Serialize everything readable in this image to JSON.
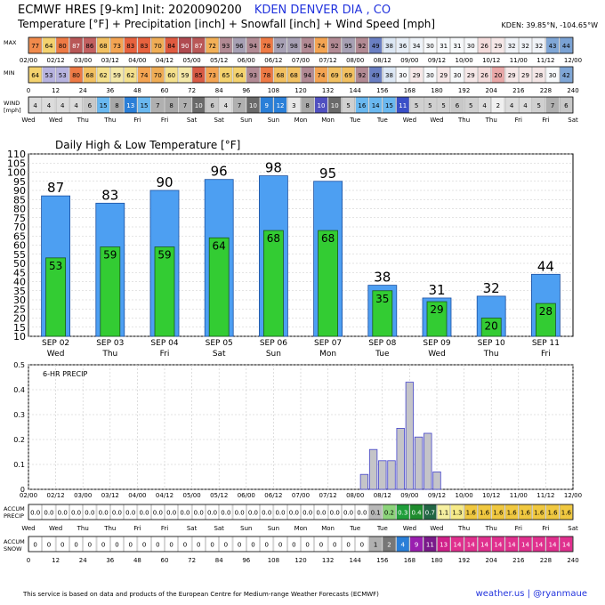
{
  "header": {
    "line1": "ECMWF HRES [9-km] Init: 2020090200",
    "place": "KDEN DENVER DIA   , CO",
    "line2": "Temperature [°F] + Precipitation [inch] + Snowfall [inch] + Wind Speed [mph]",
    "coords": "KDEN: 39.85°N, -104.65°W"
  },
  "footer": {
    "left": "This service is based on data and products of the European Centre for Medium-range Weather Forecasts (ECMWF)",
    "right": "weather.us | @ryanmaue"
  },
  "colors": {
    "high_bar": "#4d9ff2",
    "low_bar": "#33cc33",
    "precip_bar": "#c4c4c8",
    "precip_edge": "#4444cc"
  },
  "strip": {
    "max_label": "MAX",
    "min_label": "MIN",
    "wind_label_1": "WIND",
    "wind_label_2": "[mph]",
    "accum_precip_label_1": "ACCUM",
    "accum_precip_label_2": "PRECIP",
    "accum_snow_label_1": "ACCUM",
    "accum_snow_label_2": "SNOW",
    "max_values": [
      "77",
      "64",
      "80",
      "87",
      "86",
      "68",
      "73",
      "83",
      "83",
      "70",
      "84",
      "90",
      "87",
      "72",
      "93",
      "96",
      "94",
      "78",
      "97",
      "98",
      "94",
      "74",
      "92",
      "95",
      "92",
      "49",
      "38",
      "36",
      "34",
      "30",
      "31",
      "31",
      "30",
      "26",
      "29",
      "32",
      "32",
      "32",
      "43",
      "44"
    ],
    "max_colors": [
      "#f08a4b",
      "#f4d26e",
      "#ee7a45",
      "#b95757",
      "#c36060",
      "#f2c061",
      "#f4a452",
      "#e8623e",
      "#e8623e",
      "#f0ad55",
      "#e05a40",
      "#b04a50",
      "#b95757",
      "#f2b057",
      "#b28a94",
      "#a7a0b4",
      "#b28a94",
      "#ee7a45",
      "#a7a0b4",
      "#a7a0b4",
      "#b28a94",
      "#f4a452",
      "#b28a94",
      "#a7a0b4",
      "#b28a94",
      "#6a7fc2",
      "#dce7f4",
      "#e7eef7",
      "#eef3f9",
      "#f7f9fb",
      "#f7f9fb",
      "#f7f9fb",
      "#f7f9fb",
      "#f4dcdc",
      "#f6e8e8",
      "#f0f3f8",
      "#f0f3f8",
      "#f0f3f8",
      "#7fa6d6",
      "#7aa2d4"
    ],
    "min_values": [
      "64",
      "53",
      "53",
      "80",
      "68",
      "62",
      "59",
      "62",
      "74",
      "70",
      "60",
      "59",
      "85",
      "73",
      "65",
      "64",
      "93",
      "78",
      "68",
      "68",
      "94",
      "74",
      "69",
      "69",
      "92",
      "49",
      "38",
      "30",
      "29",
      "30",
      "29",
      "30",
      "29",
      "26",
      "20",
      "29",
      "29",
      "28",
      "30",
      "42"
    ],
    "min_colors": [
      "#f4d26e",
      "#b7b3df",
      "#b7b3df",
      "#ee7a45",
      "#f2c061",
      "#f4e08c",
      "#f4e8a8",
      "#f4e08c",
      "#f4a452",
      "#f0ad55",
      "#f4e08c",
      "#f4e8a8",
      "#d85b45",
      "#f4a452",
      "#f4d26e",
      "#f4d26e",
      "#b28a94",
      "#ee7a45",
      "#f2c061",
      "#f2c061",
      "#b28a94",
      "#f4a452",
      "#f2c061",
      "#f2c061",
      "#b28a94",
      "#6a7fc2",
      "#dce7f4",
      "#f7f9fb",
      "#f6e8e8",
      "#f7f9fb",
      "#f6e8e8",
      "#f7f9fb",
      "#f6e8e8",
      "#f4dcdc",
      "#e9a8a8",
      "#f6e8e8",
      "#f6e8e8",
      "#f4e6e6",
      "#f7f9fb",
      "#7fa6d6"
    ],
    "wind_values": [
      "4",
      "4",
      "4",
      "4",
      "6",
      "15",
      "8",
      "13",
      "15",
      "7",
      "8",
      "7",
      "10",
      "6",
      "4",
      "7",
      "10",
      "9",
      "12",
      "3",
      "8",
      "10",
      "10",
      "5",
      "16",
      "14",
      "15",
      "11",
      "5",
      "5",
      "5",
      "6",
      "5",
      "4",
      "2",
      "4",
      "4",
      "5",
      "7",
      "6"
    ],
    "wind_colors": [
      "#dcdcdc",
      "#dcdcdc",
      "#dcdcdc",
      "#dcdcdc",
      "#c8c8c8",
      "#6ab8f0",
      "#a8a8a8",
      "#2a7fd8",
      "#6ab8f0",
      "#b0b0b0",
      "#a8a8a8",
      "#b0b0b0",
      "#6a6a6a",
      "#c8c8c8",
      "#dcdcdc",
      "#b0b0b0",
      "#6a6a6a",
      "#2a7fd8",
      "#2a7fd8",
      "#e8e8e8",
      "#a8a8a8",
      "#5050c0",
      "#6a6a6a",
      "#d0d0d0",
      "#6ab8f0",
      "#6ab8f0",
      "#6ab8f0",
      "#3a50c8",
      "#d0d0d0",
      "#d0d0d0",
      "#d0d0d0",
      "#c8c8c8",
      "#d0d0d0",
      "#dcdcdc",
      "#f0f0f0",
      "#dcdcdc",
      "#dcdcdc",
      "#d0d0d0",
      "#b0b0b0",
      "#c8c8c8"
    ],
    "accum_precip_values": [
      "0.0",
      "0.0",
      "0.0",
      "0.0",
      "0.0",
      "0.0",
      "0.0",
      "0.0",
      "0.0",
      "0.0",
      "0.0",
      "0.0",
      "0.0",
      "0.0",
      "0.0",
      "0.0",
      "0.0",
      "0.0",
      "0.0",
      "0.0",
      "0.0",
      "0.0",
      "0.0",
      "0.0",
      "0.0",
      "0.1",
      "0.2",
      "0.3",
      "0.4",
      "0.7",
      "1.1",
      "1.3",
      "1.6",
      "1.6",
      "1.6",
      "1.6",
      "1.6",
      "1.6",
      "1.6",
      "1.6"
    ],
    "accum_precip_colors": [
      "#ffffff",
      "#ffffff",
      "#ffffff",
      "#ffffff",
      "#ffffff",
      "#ffffff",
      "#ffffff",
      "#ffffff",
      "#ffffff",
      "#ffffff",
      "#ffffff",
      "#ffffff",
      "#ffffff",
      "#ffffff",
      "#ffffff",
      "#ffffff",
      "#ffffff",
      "#ffffff",
      "#ffffff",
      "#ffffff",
      "#ffffff",
      "#ffffff",
      "#ffffff",
      "#ffffff",
      "#ffffff",
      "#b8b8b8",
      "#8cd47a",
      "#1f9e3a",
      "#1f8c2e",
      "#226644",
      "#f6f0a0",
      "#f6ea88",
      "#f0c840",
      "#f0c840",
      "#f0c840",
      "#f0c840",
      "#f0c840",
      "#f0c840",
      "#f0c840",
      "#f0c840"
    ],
    "accum_snow_values": [
      "0",
      "0",
      "0",
      "0",
      "0",
      "0",
      "0",
      "0",
      "0",
      "0",
      "0",
      "0",
      "0",
      "0",
      "0",
      "0",
      "0",
      "0",
      "0",
      "0",
      "0",
      "0",
      "0",
      "0",
      "0",
      "1",
      "2",
      "4",
      "9",
      "11",
      "13",
      "14",
      "14",
      "14",
      "14",
      "14",
      "14",
      "14",
      "14",
      "14"
    ],
    "accum_snow_colors": [
      "#ffffff",
      "#ffffff",
      "#ffffff",
      "#ffffff",
      "#ffffff",
      "#ffffff",
      "#ffffff",
      "#ffffff",
      "#ffffff",
      "#ffffff",
      "#ffffff",
      "#ffffff",
      "#ffffff",
      "#ffffff",
      "#ffffff",
      "#ffffff",
      "#ffffff",
      "#ffffff",
      "#ffffff",
      "#ffffff",
      "#ffffff",
      "#ffffff",
      "#ffffff",
      "#ffffff",
      "#ffffff",
      "#b0b0b0",
      "#777777",
      "#2a7fd8",
      "#9a1fb0",
      "#7a1a8a",
      "#d0208a",
      "#e0308e",
      "#e0308e",
      "#e0308e",
      "#e0308e",
      "#e0308e",
      "#e0308e",
      "#e0308e",
      "#e0308e",
      "#e0308e"
    ],
    "hour_ticks": [
      "02/00",
      "02/12",
      "03/00",
      "03/12",
      "04/00",
      "04/12",
      "05/00",
      "05/12",
      "06/00",
      "06/12",
      "07/00",
      "07/12",
      "08/00",
      "08/12",
      "09/00",
      "09/12",
      "10/00",
      "10/12",
      "11/00",
      "11/12",
      "12/00"
    ],
    "fhour_ticks": [
      "0",
      "12",
      "24",
      "36",
      "48",
      "60",
      "72",
      "84",
      "96",
      "108",
      "120",
      "132",
      "144",
      "156",
      "168",
      "180",
      "192",
      "204",
      "216",
      "228",
      "240"
    ],
    "weekday_ticks": [
      "Wed",
      "Wed",
      "Thu",
      "Thu",
      "Fri",
      "Fri",
      "Sat",
      "Sat",
      "Sun",
      "Sun",
      "Mon",
      "Mon",
      "Tue",
      "Tue",
      "Wed",
      "Wed",
      "Thu",
      "Thu",
      "Fri",
      "Fri",
      "Sat"
    ]
  },
  "chart_data": [
    {
      "type": "bar",
      "title": "Daily High & Low Temperature [°F]",
      "categories": [
        "SEP 02",
        "SEP 03",
        "SEP 04",
        "SEP 05",
        "SEP 06",
        "SEP 07",
        "SEP 08",
        "SEP 09",
        "SEP 10",
        "SEP 11"
      ],
      "weekdays": [
        "Wed",
        "Thu",
        "Fri",
        "Sat",
        "Sun",
        "Mon",
        "Tue",
        "Wed",
        "Thu",
        "Fri"
      ],
      "series": [
        {
          "name": "High",
          "values": [
            87,
            83,
            90,
            96,
            98,
            95,
            38,
            31,
            32,
            44
          ]
        },
        {
          "name": "Low",
          "values": [
            53,
            59,
            59,
            64,
            68,
            68,
            35,
            29,
            20,
            28
          ]
        }
      ],
      "ylim": [
        10,
        110
      ],
      "yticks": [
        "10",
        "15",
        "20",
        "25",
        "30",
        "35",
        "40",
        "45",
        "50",
        "55",
        "60",
        "65",
        "70",
        "75",
        "80",
        "85",
        "90",
        "95",
        "100",
        "105",
        "110"
      ],
      "grid": true
    },
    {
      "type": "bar",
      "title": "6-HR PRECIP",
      "ylim": [
        0,
        0.5
      ],
      "yticks": [
        "0",
        "0.1",
        "0.2",
        "0.3",
        "0.4",
        "0.5"
      ],
      "xticks": [
        "02/00",
        "02/12",
        "03/00",
        "03/12",
        "04/00",
        "04/12",
        "05/00",
        "05/12",
        "06/00",
        "06/12",
        "07/00",
        "07/12",
        "08/00",
        "08/12",
        "09/00",
        "09/12",
        "10/00",
        "10/12",
        "11/00",
        "11/12",
        "12/00"
      ],
      "values": [
        0,
        0,
        0,
        0,
        0,
        0,
        0,
        0,
        0,
        0,
        0,
        0,
        0,
        0,
        0,
        0,
        0,
        0,
        0,
        0,
        0,
        0,
        0,
        0,
        0,
        0,
        0,
        0,
        0,
        0,
        0,
        0,
        0,
        0,
        0,
        0,
        0,
        0.06,
        0.16,
        0.115,
        0.115,
        0.245,
        0.43,
        0.21,
        0.225,
        0.07,
        0,
        0,
        0,
        0,
        0,
        0,
        0,
        0,
        0,
        0,
        0,
        0,
        0,
        0,
        0
      ],
      "grid": true
    }
  ]
}
